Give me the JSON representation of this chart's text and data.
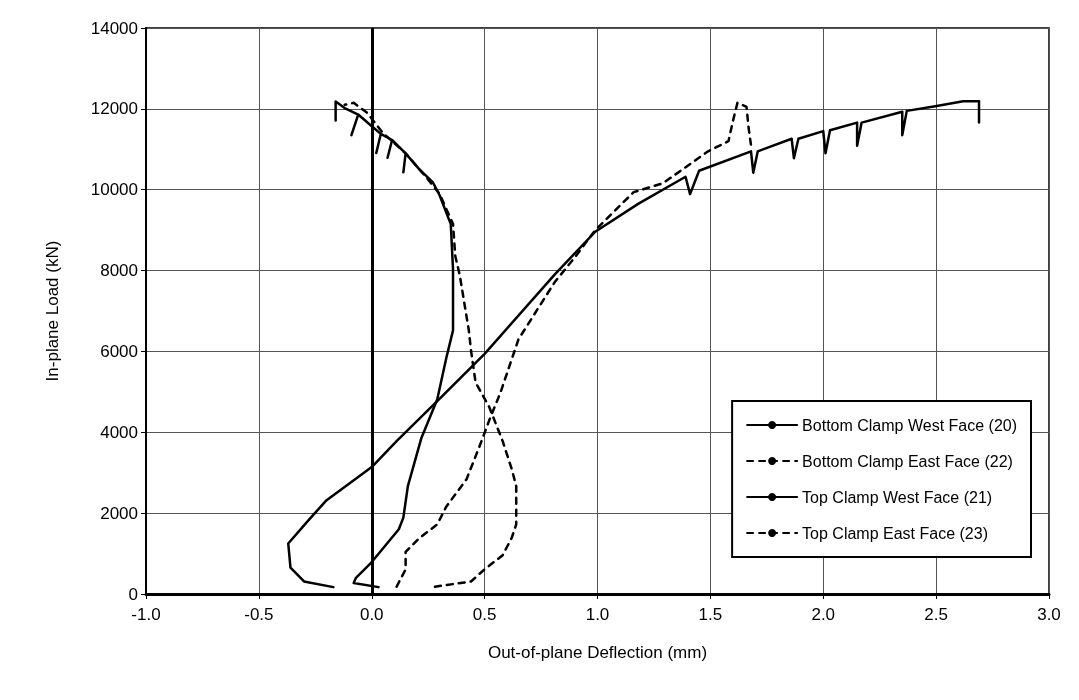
{
  "chart_data": {
    "type": "line",
    "xlabel": "Out-of-plane Deflection (mm)",
    "ylabel": "In-plane Load (kN)",
    "xlim": [
      -1,
      3
    ],
    "xticks": [
      {
        "value": -1,
        "label": "-1.0"
      },
      {
        "value": -0.5,
        "label": "-0.5"
      },
      {
        "value": 0,
        "label": "0.0"
      },
      {
        "value": 0.5,
        "label": "0.5"
      },
      {
        "value": 1,
        "label": "1.0"
      },
      {
        "value": 1.5,
        "label": "1.5"
      },
      {
        "value": 2,
        "label": "2.0"
      },
      {
        "value": 2.5,
        "label": "2.5"
      },
      {
        "value": 3,
        "label": "3.0"
      }
    ],
    "ylim": [
      0,
      14000
    ],
    "yticks": [
      0,
      2000,
      4000,
      6000,
      8000,
      10000,
      12000,
      14000
    ],
    "grid": true,
    "legend": "bottom right",
    "marker": "none",
    "ref_lines": [
      {
        "axis": "x",
        "value": 0,
        "label": null
      }
    ],
    "series": [
      {
        "name": "Bottom Clamp West Face (20)",
        "color": "#000000",
        "line_style": "solid",
        "x": [
          -0.17,
          -0.3,
          -0.36,
          -0.37,
          -0.27,
          -0.2,
          0,
          0.11,
          0.29,
          0.5,
          0.81,
          0.99,
          1.18,
          1.39,
          1.41,
          1.45,
          1.68,
          1.69,
          1.71,
          1.86,
          1.87,
          1.89,
          2,
          2.01,
          2.03,
          2.15,
          2.15,
          2.17,
          2.35,
          2.35,
          2.37,
          2.49,
          2.62,
          2.69,
          2.69
        ],
        "values": [
          170,
          310,
          650,
          1250,
          1890,
          2320,
          3140,
          3780,
          4770,
          5940,
          7900,
          8960,
          9650,
          10320,
          9890,
          10470,
          10950,
          10420,
          10950,
          11260,
          10780,
          11260,
          11450,
          10900,
          11470,
          11660,
          11090,
          11660,
          11930,
          11350,
          11950,
          12060,
          12190,
          12190,
          11660
        ]
      },
      {
        "name": "Bottom Clamp East Face (22)",
        "color": "#000000",
        "line_style": "dashed",
        "x": [
          0.11,
          0.15,
          0.15,
          0.21,
          0.29,
          0.33,
          0.42,
          0.48,
          0.52,
          0.57,
          0.65,
          0.81,
          0.9,
          0.99,
          1.16,
          1.29,
          1.49,
          1.58,
          1.6,
          1.62,
          1.66,
          1.67,
          1.68
        ],
        "values": [
          180,
          610,
          1040,
          1380,
          1720,
          2160,
          2840,
          3690,
          4290,
          4980,
          6300,
          7710,
          8330,
          9000,
          9940,
          10160,
          10950,
          11200,
          11700,
          12150,
          12050,
          11500,
          11100
        ]
      },
      {
        "name": "Top Clamp West Face (21)",
        "color": "#000000",
        "line_style": "solid",
        "x": [
          0.03,
          -0.08,
          -0.07,
          0,
          0.12,
          0.14,
          0.16,
          0.22,
          0.29,
          0.33,
          0.36,
          0.36,
          0.35,
          0.3,
          0.27,
          0.21,
          0.15,
          0.14,
          0.15,
          0.09,
          0.07,
          0.09,
          0.04,
          0.02,
          0.04,
          -0.01,
          -0.06,
          -0.09,
          -0.06,
          -0.12,
          -0.16,
          -0.16
        ],
        "values": [
          170,
          270,
          400,
          790,
          1600,
          1890,
          2670,
          3860,
          4810,
          5830,
          6520,
          8030,
          9150,
          9870,
          10190,
          10510,
          10900,
          10430,
          10900,
          11230,
          10790,
          11230,
          11380,
          10910,
          11380,
          11620,
          11860,
          11350,
          11860,
          12020,
          12180,
          11710
        ]
      },
      {
        "name": "Top Clamp East Face (23)",
        "color": "#000000",
        "line_style": "dashed",
        "x": [
          0.28,
          0.44,
          0.5,
          0.58,
          0.62,
          0.64,
          0.64,
          0.62,
          0.58,
          0.52,
          0.46,
          0.44,
          0.43,
          0.39,
          0.37,
          0.36,
          0.3,
          0.25,
          0.15,
          0.05,
          -0.02,
          -0.08,
          -0.12
        ],
        "values": [
          180,
          310,
          610,
          960,
          1390,
          1720,
          2670,
          3090,
          3780,
          4630,
          5230,
          6010,
          6520,
          7880,
          8360,
          9150,
          9900,
          10250,
          10900,
          11400,
          11900,
          12150,
          12100
        ]
      }
    ]
  }
}
